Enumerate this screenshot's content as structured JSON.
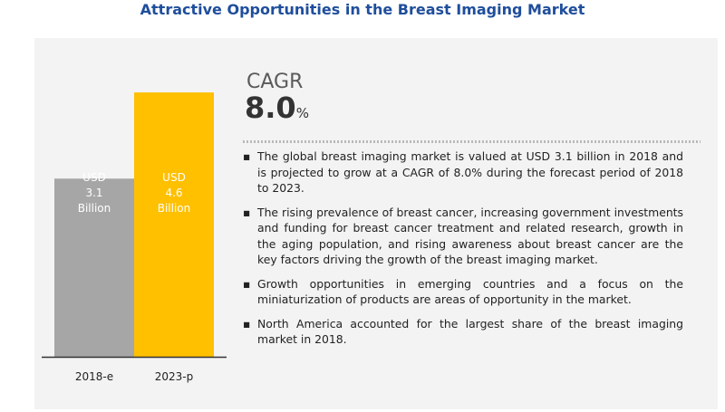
{
  "title": "Attractive Opportunities in the Breast Imaging Market",
  "cagr": {
    "label": "CAGR",
    "value": "8.0",
    "unit": "%"
  },
  "bullets": [
    "The global breast imaging market is valued at USD 3.1 billion in 2018 and is projected to grow at a CAGR of 8.0% during the forecast period of 2018 to 2023.",
    "The rising prevalence of breast cancer, increasing government investments and funding for breast cancer treatment and related research, growth in the aging population, and rising awareness about breast cancer are the key factors driving the growth of the breast imaging market.",
    "Growth opportunities in emerging countries and a focus on the miniaturization of products are areas of opportunity in the market.",
    "North America accounted for the largest share of the breast imaging market in 2018."
  ],
  "chart_data": {
    "type": "bar",
    "title": "",
    "xlabel": "",
    "ylabel": "",
    "categories": [
      "2018-e",
      "2023-p"
    ],
    "values": [
      3.1,
      4.6
    ],
    "data_labels": [
      [
        "USD",
        "3.1",
        "Billion"
      ],
      [
        "USD",
        "4.6",
        "Billion"
      ]
    ],
    "colors": [
      "#a6a6a6",
      "#ffc000"
    ],
    "ylim": [
      0,
      5.2
    ],
    "grid": false,
    "legend": "none"
  }
}
